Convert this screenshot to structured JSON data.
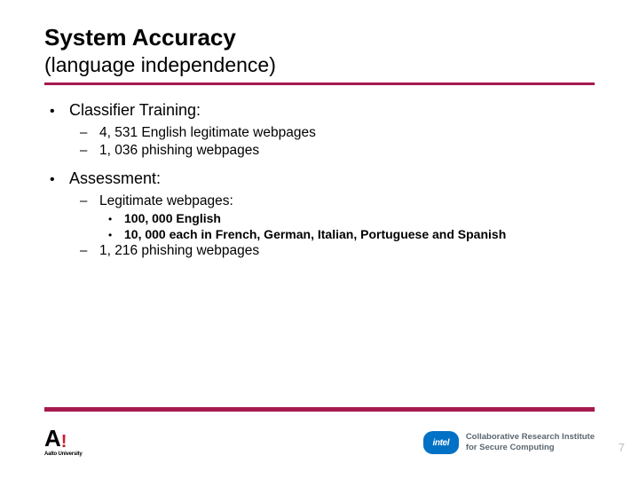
{
  "colors": {
    "divider": "#a6194f",
    "footer_bar": "#a6194f",
    "aalto_accent": "#d4182d",
    "intel_blue": "#0071c5",
    "intel_text": "#5b6770",
    "page_num": "#bfbfbf"
  },
  "header": {
    "title": "System Accuracy",
    "subtitle": "(language independence)"
  },
  "body": {
    "items": [
      {
        "level": 1,
        "text": "Classifier Training:"
      },
      {
        "level": 2,
        "text": "4, 531 English legitimate webpages"
      },
      {
        "level": 2,
        "text": "1, 036 phishing webpages"
      },
      {
        "level": 1,
        "text": "Assessment:"
      },
      {
        "level": 2,
        "text": "Legitimate webpages:"
      },
      {
        "level": 3,
        "text": "100, 000 English"
      },
      {
        "level": 3,
        "text": "10, 000 each in French, German, Italian, Portuguese and Spanish"
      },
      {
        "level": 2,
        "text": "1, 216 phishing webpages"
      }
    ]
  },
  "footer": {
    "aalto_label": "Aalto University",
    "intel_label": "intel",
    "collab_line1": "Collaborative Research Institute",
    "collab_line2": "for Secure Computing",
    "page_number": "7"
  }
}
